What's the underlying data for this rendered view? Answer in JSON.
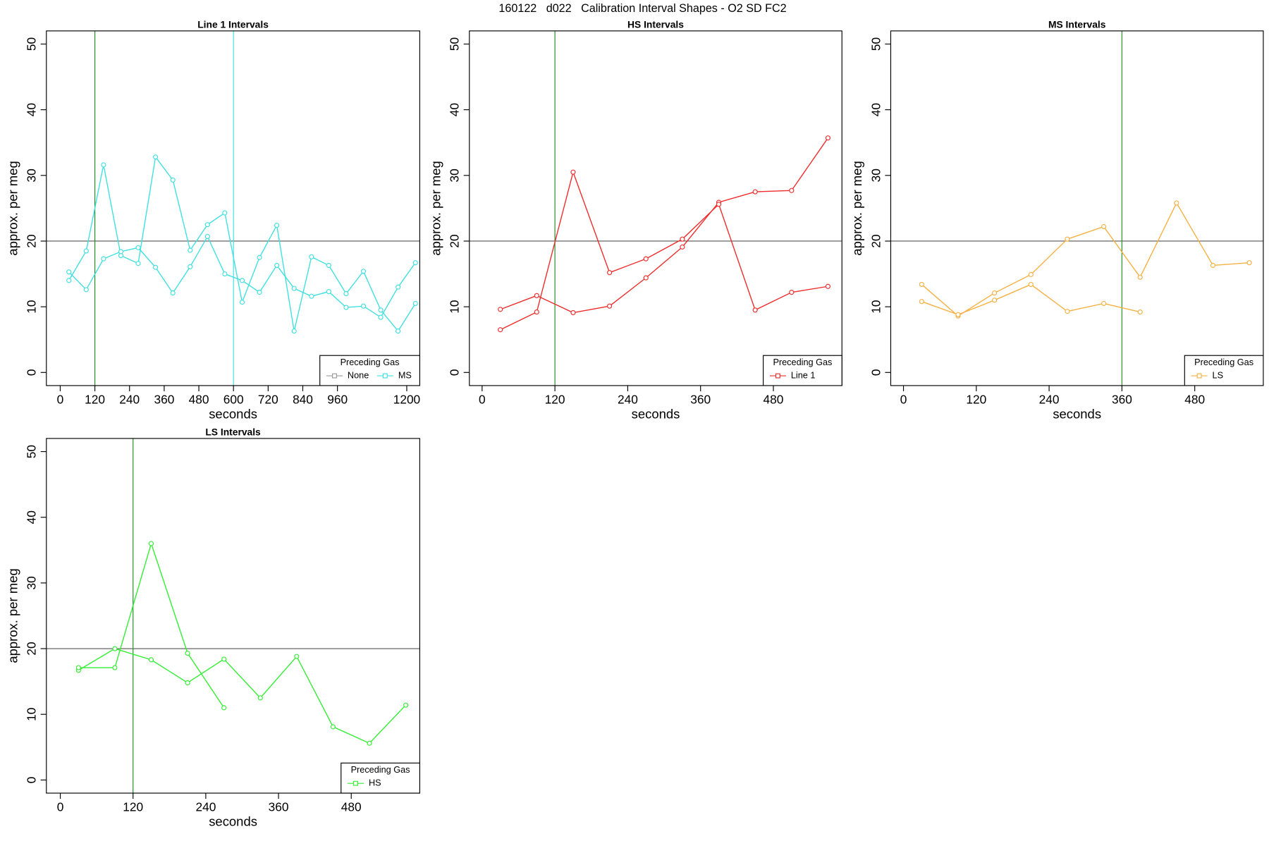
{
  "title": "160122   d022   Calibration Interval Shapes - O2 SD FC2",
  "chart_data": [
    {
      "type": "line",
      "title": "Line 1 Intervals",
      "xlabel": "seconds",
      "ylabel": "approx. per meg",
      "xlim": [
        -48,
        1245
      ],
      "ylim": [
        -2,
        52
      ],
      "xticks": [
        0,
        120,
        240,
        360,
        480,
        600,
        720,
        840,
        960,
        1200
      ],
      "yticks": [
        0,
        10,
        20,
        30,
        40,
        50
      ],
      "hline": {
        "value": 20,
        "color": "#555555"
      },
      "vlines": [
        {
          "value": 120,
          "color": "#228b22"
        },
        {
          "value": 600,
          "color": "#40e0e0"
        }
      ],
      "legend": {
        "title": "Preceding Gas",
        "position": "bottom-right",
        "entries": [
          {
            "name": "None",
            "color": "#999999"
          },
          {
            "name": "MS",
            "color": "#40e0e0"
          }
        ]
      },
      "series": [
        {
          "color": "#40e0e0",
          "x": [
            30,
            90,
            150,
            210,
            270,
            330,
            390,
            450,
            510,
            570,
            630,
            690,
            750,
            810,
            870,
            930,
            990,
            1050,
            1110,
            1170,
            1230
          ],
          "values": [
            14.0,
            18.5,
            31.6,
            17.8,
            16.6,
            32.8,
            29.3,
            18.6,
            22.5,
            24.3,
            10.7,
            17.5,
            22.4,
            6.3,
            17.6,
            16.3,
            12.0,
            15.4,
            9.5,
            6.3,
            10.5
          ]
        },
        {
          "color": "#40e0e0",
          "x": [
            30,
            90,
            150,
            210,
            270,
            330,
            390,
            450,
            510,
            570,
            630,
            690,
            750,
            810,
            870,
            930,
            990,
            1050,
            1110,
            1170,
            1230
          ],
          "values": [
            15.3,
            12.6,
            17.3,
            18.4,
            19.0,
            16.0,
            12.1,
            16.1,
            20.7,
            15.0,
            14.0,
            12.2,
            16.3,
            12.8,
            11.6,
            12.3,
            9.9,
            10.1,
            8.4,
            13.0,
            16.7
          ]
        }
      ]
    },
    {
      "type": "line",
      "title": "HS Intervals",
      "xlabel": "seconds",
      "ylabel": "approx. per meg",
      "xlim": [
        -21,
        593
      ],
      "ylim": [
        -2,
        52
      ],
      "xticks": [
        0,
        120,
        240,
        360,
        480
      ],
      "yticks": [
        0,
        10,
        20,
        30,
        40,
        50
      ],
      "hline": {
        "value": 20,
        "color": "#555555"
      },
      "vlines": [
        {
          "value": 120,
          "color": "#228b22"
        }
      ],
      "legend": {
        "title": "Preceding Gas",
        "position": "bottom-right",
        "entries": [
          {
            "name": "Line 1",
            "color": "#ee2c2c"
          }
        ]
      },
      "series": [
        {
          "color": "#ee2c2c",
          "x": [
            30,
            90,
            150,
            210,
            270,
            330,
            390,
            450,
            510,
            570
          ],
          "values": [
            9.6,
            11.7,
            9.1,
            10.1,
            14.4,
            19.1,
            25.9,
            27.5,
            27.7,
            35.7
          ]
        },
        {
          "color": "#ee2c2c",
          "x": [
            30,
            90,
            150,
            210,
            270,
            330,
            390,
            450,
            510,
            570
          ],
          "values": [
            6.5,
            9.2,
            30.5,
            15.2,
            17.3,
            20.3,
            25.6,
            9.5,
            12.2,
            13.1
          ]
        }
      ]
    },
    {
      "type": "line",
      "title": "MS Intervals",
      "xlabel": "seconds",
      "ylabel": "approx. per meg",
      "xlim": [
        -21,
        593
      ],
      "ylim": [
        -2,
        52
      ],
      "xticks": [
        0,
        120,
        240,
        360,
        480
      ],
      "yticks": [
        0,
        10,
        20,
        30,
        40,
        50
      ],
      "hline": {
        "value": 20,
        "color": "#555555"
      },
      "vlines": [
        {
          "value": 360,
          "color": "#228b22"
        }
      ],
      "legend": {
        "title": "Preceding Gas",
        "position": "bottom-right",
        "entries": [
          {
            "name": "LS",
            "color": "#f5b041"
          }
        ]
      },
      "series": [
        {
          "color": "#f5b041",
          "x": [
            30,
            90,
            150,
            210,
            270,
            330,
            390,
            450,
            510,
            570
          ],
          "values": [
            13.4,
            8.6,
            12.1,
            14.9,
            20.3,
            22.2,
            14.5,
            25.8,
            16.3,
            16.7
          ]
        },
        {
          "color": "#f5b041",
          "x": [
            30,
            90,
            150,
            210,
            270,
            330,
            390
          ],
          "values": [
            10.8,
            8.8,
            11.0,
            13.4,
            9.3,
            10.5,
            9.2
          ]
        }
      ]
    },
    {
      "type": "line",
      "title": "LS Intervals",
      "xlabel": "seconds",
      "ylabel": "approx. per meg",
      "xlim": [
        -23,
        593
      ],
      "ylim": [
        -2,
        52
      ],
      "xticks": [
        0,
        120,
        240,
        360,
        480
      ],
      "yticks": [
        0,
        10,
        20,
        30,
        40,
        50
      ],
      "hline": {
        "value": 20,
        "color": "#555555"
      },
      "vlines": [
        {
          "value": 120,
          "color": "#228b22"
        }
      ],
      "legend": {
        "title": "Preceding Gas",
        "position": "bottom-right",
        "entries": [
          {
            "name": "HS",
            "color": "#33ee33"
          }
        ]
      },
      "series": [
        {
          "color": "#33ee33",
          "x": [
            30,
            90,
            150,
            210,
            270,
            330,
            390,
            450,
            510,
            570
          ],
          "values": [
            16.7,
            20.0,
            18.3,
            14.8,
            18.4,
            12.5,
            18.8,
            8.1,
            5.6,
            11.4
          ]
        },
        {
          "color": "#33ee33",
          "x": [
            30,
            90,
            150,
            210,
            270
          ],
          "values": [
            17.1,
            17.1,
            36.0,
            19.3,
            11.0
          ]
        }
      ]
    }
  ]
}
